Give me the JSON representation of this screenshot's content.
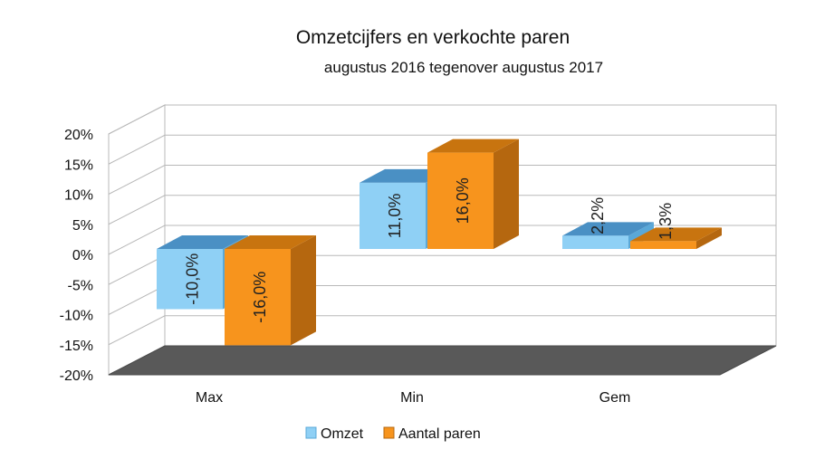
{
  "chart_data": {
    "type": "bar",
    "title": "Omzetcijfers en verkochte paren",
    "subtitle": "augustus 2016 tegenover augustus 2017",
    "categories": [
      "Max",
      "Min",
      "Gem"
    ],
    "series": [
      {
        "name": "Omzet",
        "values": [
          -10.0,
          11.0,
          2.2
        ],
        "labels": [
          "-10,0%",
          "11,0%",
          "2,2%"
        ],
        "color": "#8fd0f5",
        "side_color": "#5aa8d8",
        "top_color": "#4a90c4"
      },
      {
        "name": "Aantal paren",
        "values": [
          -16.0,
          16.0,
          1.3
        ],
        "labels": [
          "-16,0%",
          "16,0%",
          "1,3%"
        ],
        "color": "#f7941d",
        "side_color": "#b5670f",
        "top_color": "#c8740f"
      }
    ],
    "y_ticks": [
      "20%",
      "15%",
      "10%",
      "5%",
      "0%",
      "-5%",
      "-10%",
      "-15%",
      "-20%"
    ],
    "ylim": [
      -20,
      20
    ],
    "grid": true,
    "legend_position": "bottom",
    "style": "3d-clustered-column"
  }
}
